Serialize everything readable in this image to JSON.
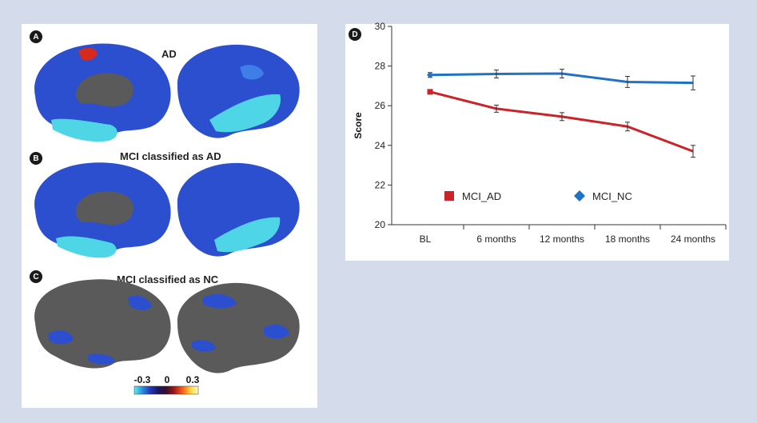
{
  "panels": {
    "a": {
      "badge": "A",
      "title": "AD"
    },
    "b": {
      "badge": "B",
      "title": "MCI classified as AD"
    },
    "c": {
      "badge": "C",
      "title": "MCI classified as NC"
    },
    "d": {
      "badge": "D"
    }
  },
  "colorbar": {
    "tick_labels": [
      "-0.3",
      "0",
      "0.3"
    ],
    "colors": [
      "#5ff0f0",
      "#2a8fe0",
      "#2536b8",
      "#1b1660",
      "#3a0e2a",
      "#a01818",
      "#ff5a14",
      "#ffd23c",
      "#ffffc0"
    ]
  },
  "brain_colors": {
    "blue": "#2c4fd0",
    "cyan": "#4fd6e6",
    "light_blue": "#3d7fe6",
    "gray": "#5a5a5a",
    "red": "#d42a1f"
  },
  "chart_data": {
    "type": "line",
    "categories": [
      "BL",
      "6 months",
      "12 months",
      "18 months",
      "24 months"
    ],
    "ylabel": "Score",
    "xlabel": "",
    "ylim": [
      20,
      30
    ],
    "yticks": [
      20,
      22,
      24,
      26,
      28,
      30
    ],
    "legend": "inside-bottom",
    "grid": false,
    "series": [
      {
        "name": "MCI_AD",
        "color": "#cc2229",
        "marker": "square",
        "values": [
          26.7,
          25.85,
          25.45,
          24.95,
          23.7
        ],
        "errors": [
          0.08,
          0.18,
          0.2,
          0.22,
          0.3
        ]
      },
      {
        "name": "MCI_NC",
        "color": "#1f72c4",
        "marker": "diamond",
        "values": [
          27.55,
          27.6,
          27.62,
          27.2,
          27.15
        ],
        "errors": [
          0.12,
          0.2,
          0.22,
          0.28,
          0.35
        ]
      }
    ]
  }
}
